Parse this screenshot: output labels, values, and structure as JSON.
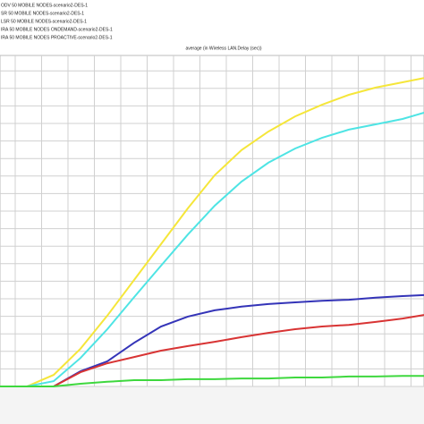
{
  "chart_data": {
    "type": "line",
    "title": "average (in Wireless LAN.Delay (sec))",
    "x": [
      0,
      30,
      60,
      90,
      120,
      150,
      180,
      210,
      240,
      270,
      300,
      330,
      360,
      390,
      420,
      450,
      474
    ],
    "xlim": [
      0,
      474
    ],
    "ylim": [
      0,
      100
    ],
    "grid": true,
    "series": [
      {
        "name": "ODV 50 MOBILE NODES-scenario2-DES-1",
        "color": "#f5e63a",
        "values": [
          0,
          0,
          3.5,
          11.4,
          21.4,
          32.2,
          43,
          53.8,
          63.8,
          71.4,
          77,
          81.6,
          85.1,
          88.1,
          90.3,
          91.9,
          93.2
        ]
      },
      {
        "name": "SR 50 MOBILE NODES-scenario2-DES-1",
        "color": "#4ee4e4",
        "values": [
          0,
          0,
          1.6,
          8.6,
          17.3,
          27,
          36.5,
          45.9,
          54.6,
          61.9,
          67.6,
          71.9,
          75.1,
          77.6,
          79.2,
          80.8,
          82.7
        ]
      },
      {
        "name": "LSR 50 MOBILE NODES-scenario2-DES-1",
        "color": "#3434b8",
        "values": [
          0,
          0,
          0,
          4.6,
          7.6,
          13.2,
          18.1,
          21.1,
          23,
          24.1,
          24.9,
          25.4,
          25.9,
          26.2,
          26.8,
          27.3,
          27.6
        ]
      },
      {
        "name": "IRA 50 MOBILE NODES ONDEMAND-scenario2-DES-1",
        "color": "#d83434",
        "values": [
          0,
          0,
          0,
          4.3,
          7,
          8.9,
          10.8,
          12.2,
          13.5,
          14.9,
          16.2,
          17.3,
          18.1,
          18.6,
          19.5,
          20.5,
          21.6
        ]
      },
      {
        "name": "IRA 50 MOBILE NODES PROACTIVE-scenario2-DES-1",
        "color": "#3ed83e",
        "values": [
          0,
          0,
          0,
          0.8,
          1.4,
          1.9,
          1.9,
          2.2,
          2.2,
          2.4,
          2.4,
          2.7,
          2.7,
          3,
          3,
          3.2,
          3.2
        ]
      }
    ]
  }
}
